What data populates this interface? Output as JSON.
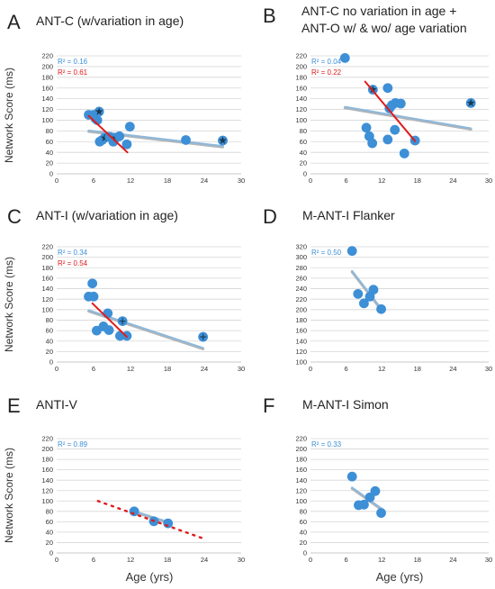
{
  "figure": {
    "ylabels": [
      {
        "row": 0,
        "text": "Network Score (ms)"
      },
      {
        "row": 1,
        "text": "Network Score (ms)"
      },
      {
        "row": 2,
        "text": "Network Score (ms)"
      }
    ],
    "xlabels": [
      {
        "col": 0,
        "text": "Age (yrs)"
      },
      {
        "col": 1,
        "text": "Age (yrs)"
      }
    ]
  },
  "colors": {
    "blue": "#3d8fd6",
    "blue_line": "#8fb8d9",
    "red": "#e01b1b",
    "star_fill": "#1a3a52"
  },
  "chart_data": [
    {
      "type": "scatter",
      "letter": "A",
      "title": [
        "ANT-C (w/variation in age)"
      ],
      "xlim": [
        0,
        30
      ],
      "ylim": [
        0,
        220
      ],
      "xticks": [
        0,
        6,
        12,
        18,
        24,
        30
      ],
      "yticks": [
        0,
        20,
        40,
        60,
        80,
        100,
        120,
        140,
        160,
        180,
        200,
        220
      ],
      "annotations": [
        {
          "text": "R² = 0.16",
          "color": "blue"
        },
        {
          "text": "R² = 0.61",
          "color": "red"
        }
      ],
      "points": [
        {
          "x": 5.2,
          "y": 110
        },
        {
          "x": 6.0,
          "y": 110
        },
        {
          "x": 6.3,
          "y": 103
        },
        {
          "x": 6.6,
          "y": 100
        },
        {
          "x": 6.9,
          "y": 116,
          "marker": "star"
        },
        {
          "x": 7.0,
          "y": 60
        },
        {
          "x": 7.4,
          "y": 63
        },
        {
          "x": 7.8,
          "y": 67,
          "marker": "star"
        },
        {
          "x": 8.6,
          "y": 69
        },
        {
          "x": 9.2,
          "y": 60
        },
        {
          "x": 9.6,
          "y": 67,
          "marker": "star"
        },
        {
          "x": 10.2,
          "y": 70
        },
        {
          "x": 11.4,
          "y": 55
        },
        {
          "x": 11.9,
          "y": 88
        },
        {
          "x": 21.0,
          "y": 63
        },
        {
          "x": 27.0,
          "y": 62,
          "marker": "star"
        }
      ],
      "trendlines": [
        {
          "color": "blue",
          "x": [
            5.2,
            27.0
          ],
          "y": [
            79,
            50
          ]
        },
        {
          "color": "red",
          "x": [
            5.2,
            11.5
          ],
          "y": [
            108,
            40
          ]
        }
      ]
    },
    {
      "type": "scatter",
      "letter": "B",
      "title": [
        "ANT-C no variation in age +",
        "ANT-O w/ & wo/ age variation"
      ],
      "xlim": [
        0,
        30
      ],
      "ylim": [
        0,
        220
      ],
      "xticks": [
        0,
        6,
        12,
        18,
        24,
        30
      ],
      "yticks": [
        0,
        20,
        40,
        60,
        80,
        100,
        120,
        140,
        160,
        180,
        200,
        220
      ],
      "annotations": [
        {
          "text": "R² = 0.04",
          "color": "blue"
        },
        {
          "text": "R² = 0.22",
          "color": "red"
        }
      ],
      "points": [
        {
          "x": 5.8,
          "y": 216
        },
        {
          "x": 10.5,
          "y": 157,
          "marker": "star"
        },
        {
          "x": 13.0,
          "y": 160
        },
        {
          "x": 13.3,
          "y": 122
        },
        {
          "x": 13.7,
          "y": 128
        },
        {
          "x": 14.3,
          "y": 132
        },
        {
          "x": 15.2,
          "y": 131
        },
        {
          "x": 9.4,
          "y": 86
        },
        {
          "x": 9.9,
          "y": 70
        },
        {
          "x": 10.4,
          "y": 57
        },
        {
          "x": 13.0,
          "y": 64
        },
        {
          "x": 14.2,
          "y": 82
        },
        {
          "x": 15.8,
          "y": 38
        },
        {
          "x": 17.6,
          "y": 62
        },
        {
          "x": 27.0,
          "y": 132,
          "marker": "star"
        }
      ],
      "trendlines": [
        {
          "color": "blue",
          "x": [
            5.8,
            27.0
          ],
          "y": [
            123,
            83
          ]
        },
        {
          "color": "red",
          "x": [
            9.2,
            17.6
          ],
          "y": [
            172,
            61
          ]
        }
      ]
    },
    {
      "type": "scatter",
      "letter": "C",
      "title": [
        "ANT-I (w/variation in age)"
      ],
      "xlim": [
        0,
        30
      ],
      "ylim": [
        0,
        220
      ],
      "xticks": [
        0,
        6,
        12,
        18,
        24,
        30
      ],
      "yticks": [
        0,
        20,
        40,
        60,
        80,
        100,
        120,
        140,
        160,
        180,
        200,
        220
      ],
      "annotations": [
        {
          "text": "R² = 0.34",
          "color": "blue"
        },
        {
          "text": "R² = 0.54",
          "color": "red"
        }
      ],
      "points": [
        {
          "x": 5.2,
          "y": 125
        },
        {
          "x": 5.8,
          "y": 150
        },
        {
          "x": 6.0,
          "y": 125
        },
        {
          "x": 6.5,
          "y": 60
        },
        {
          "x": 7.6,
          "y": 68
        },
        {
          "x": 8.3,
          "y": 93
        },
        {
          "x": 8.5,
          "y": 61
        },
        {
          "x": 10.3,
          "y": 50
        },
        {
          "x": 10.7,
          "y": 78,
          "marker": "plus"
        },
        {
          "x": 11.4,
          "y": 50
        },
        {
          "x": 23.8,
          "y": 48,
          "marker": "plus"
        }
      ],
      "trendlines": [
        {
          "color": "blue",
          "x": [
            5.2,
            23.8
          ],
          "y": [
            97,
            25
          ]
        },
        {
          "color": "red",
          "x": [
            5.8,
            11.4
          ],
          "y": [
            112,
            48
          ]
        }
      ]
    },
    {
      "type": "scatter",
      "letter": "D",
      "title": [
        "M-ANT-I Flanker"
      ],
      "xlim": [
        0,
        30
      ],
      "ylim": [
        100,
        320
      ],
      "xticks": [
        0,
        6,
        12,
        18,
        24,
        30
      ],
      "yticks": [
        100,
        120,
        140,
        160,
        180,
        200,
        220,
        240,
        260,
        280,
        300,
        320
      ],
      "annotations": [
        {
          "text": "R² = 0.50",
          "color": "blue"
        }
      ],
      "points": [
        {
          "x": 7.0,
          "y": 312
        },
        {
          "x": 8.0,
          "y": 230
        },
        {
          "x": 9.0,
          "y": 212
        },
        {
          "x": 10.0,
          "y": 225
        },
        {
          "x": 10.6,
          "y": 238
        },
        {
          "x": 11.9,
          "y": 201
        }
      ],
      "trendlines": [
        {
          "color": "blue",
          "x": [
            7.0,
            11.9
          ],
          "y": [
            272,
            200
          ]
        }
      ]
    },
    {
      "type": "scatter",
      "letter": "E",
      "title": [
        "ANTI-V"
      ],
      "xlim": [
        0,
        30
      ],
      "ylim": [
        0,
        220
      ],
      "xticks": [
        0,
        6,
        12,
        18,
        24,
        30
      ],
      "yticks": [
        0,
        20,
        40,
        60,
        80,
        100,
        120,
        140,
        160,
        180,
        200,
        220
      ],
      "annotations": [
        {
          "text": "R² = 0.89",
          "color": "blue"
        }
      ],
      "points": [
        {
          "x": 12.6,
          "y": 80
        },
        {
          "x": 15.8,
          "y": 61
        },
        {
          "x": 18.1,
          "y": 57
        }
      ],
      "trendlines": [
        {
          "color": "blue",
          "x": [
            12.0,
            18.6
          ],
          "y": [
            81,
            56
          ]
        },
        {
          "color": "red",
          "dashed": true,
          "x": [
            6.7,
            23.8
          ],
          "y": [
            100,
            28
          ]
        }
      ]
    },
    {
      "type": "scatter",
      "letter": "F",
      "title": [
        "M-ANT-I Simon"
      ],
      "xlim": [
        0,
        30
      ],
      "ylim": [
        0,
        220
      ],
      "xticks": [
        0,
        6,
        12,
        18,
        24,
        30
      ],
      "yticks": [
        0,
        20,
        40,
        60,
        80,
        100,
        120,
        140,
        160,
        180,
        200,
        220
      ],
      "annotations": [
        {
          "text": "R² = 0.33",
          "color": "blue"
        }
      ],
      "points": [
        {
          "x": 7.0,
          "y": 147
        },
        {
          "x": 8.1,
          "y": 92
        },
        {
          "x": 9.0,
          "y": 93
        },
        {
          "x": 10.0,
          "y": 107
        },
        {
          "x": 10.9,
          "y": 119
        },
        {
          "x": 11.9,
          "y": 77
        }
      ],
      "trendlines": [
        {
          "color": "blue",
          "x": [
            7.0,
            11.9
          ],
          "y": [
            124,
            84
          ]
        }
      ]
    }
  ]
}
